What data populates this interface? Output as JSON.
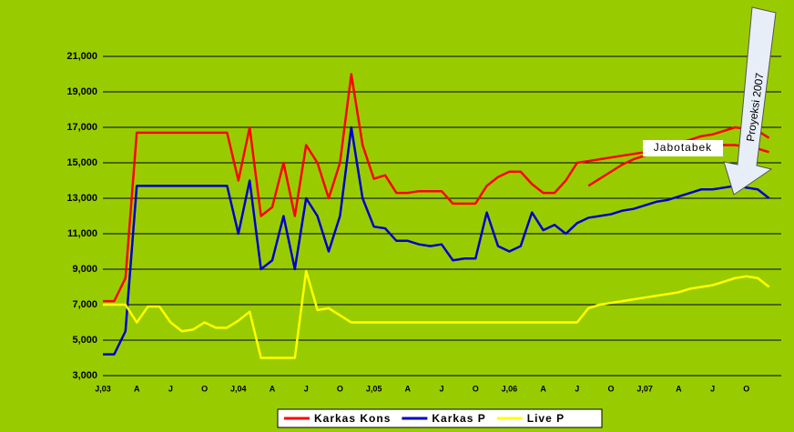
{
  "chart_data": {
    "type": "line",
    "categories": [
      "J,03",
      null,
      null,
      "A",
      null,
      null,
      "J",
      null,
      null,
      "O",
      null,
      null,
      "J,04",
      null,
      null,
      "A",
      null,
      null,
      "J",
      null,
      null,
      "O",
      null,
      null,
      "J,05",
      null,
      null,
      "A",
      null,
      null,
      "J",
      null,
      null,
      "O",
      null,
      null,
      "J,06",
      null,
      null,
      "A",
      null,
      null,
      "J",
      null,
      null,
      "O",
      null,
      null,
      "J,07",
      null,
      null,
      "A",
      null,
      null,
      "J",
      null,
      null,
      "O",
      null,
      null
    ],
    "series": [
      {
        "name": "Karkas Kons",
        "color": "#ff0000",
        "values": [
          7200,
          7200,
          8500,
          16700,
          16700,
          16700,
          16700,
          16700,
          16700,
          16700,
          16700,
          16700,
          14000,
          17000,
          12000,
          12500,
          15000,
          12000,
          16000,
          15000,
          13000,
          15000,
          20000,
          16000,
          14100,
          14300,
          13300,
          13300,
          13400,
          13400,
          13400,
          12700,
          12700,
          12700,
          13700,
          14200,
          14500,
          14500,
          13800,
          13300,
          13300,
          14000,
          15000,
          15100,
          15200,
          15300,
          15400,
          15500,
          15600,
          15700,
          15800,
          15900,
          16000,
          16000,
          16000,
          16000,
          16000,
          15900,
          15800,
          15600
        ]
      },
      {
        "color": "#ff0000",
        "values": [
          null,
          null,
          null,
          null,
          null,
          null,
          null,
          null,
          null,
          null,
          null,
          null,
          null,
          null,
          null,
          null,
          null,
          null,
          null,
          null,
          null,
          null,
          null,
          null,
          null,
          null,
          null,
          null,
          null,
          null,
          null,
          null,
          null,
          null,
          null,
          null,
          null,
          null,
          null,
          null,
          null,
          null,
          null,
          13700,
          14100,
          14500,
          14900,
          15200,
          15400,
          15700,
          15900,
          16100,
          16300,
          16500,
          16600,
          16800,
          17000,
          16900,
          16800,
          16400
        ]
      },
      {
        "name": "Karkas P",
        "color": "#0000cc",
        "values": [
          4200,
          4200,
          5500,
          13700,
          13700,
          13700,
          13700,
          13700,
          13700,
          13700,
          13700,
          13700,
          11000,
          14000,
          9000,
          9500,
          12000,
          9000,
          13000,
          12000,
          10000,
          12000,
          17000,
          13000,
          11400,
          11300,
          10600,
          10600,
          10400,
          10300,
          10400,
          9500,
          9600,
          9600,
          12200,
          10300,
          10000,
          10300,
          12200,
          11200,
          11500,
          11000,
          11600,
          11900,
          12000,
          12100,
          12300,
          12400,
          12600,
          12800,
          12900,
          13100,
          13300,
          13500,
          13500,
          13600,
          13700,
          13600,
          13500,
          13000
        ]
      },
      {
        "name": "Live P",
        "color": "#ffff00",
        "values": [
          7000,
          7000,
          7000,
          6000,
          6900,
          6900,
          6000,
          5500,
          5600,
          6000,
          5700,
          5700,
          6100,
          6600,
          4000,
          4000,
          4000,
          4000,
          8900,
          6700,
          6800,
          6400,
          6000,
          6000,
          6000,
          6000,
          6000,
          6000,
          6000,
          6000,
          6000,
          6000,
          6000,
          6000,
          6000,
          6000,
          6000,
          6000,
          6000,
          6000,
          6000,
          6000,
          6000,
          6800,
          7000,
          7100,
          7200,
          7300,
          7400,
          7500,
          7600,
          7700,
          7900,
          8000,
          8100,
          8300,
          8500,
          8600,
          8500,
          8000
        ]
      }
    ],
    "ylim": [
      3000,
      21000
    ],
    "yticks": [
      {
        "value": 3000,
        "label": "3,000"
      },
      {
        "value": 5000,
        "label": "5,000"
      },
      {
        "value": 7000,
        "label": "7,000"
      },
      {
        "value": 9000,
        "label": "9,000"
      },
      {
        "value": 11000,
        "label": "11,000"
      },
      {
        "value": 13000,
        "label": "13,000"
      },
      {
        "value": 15000,
        "label": "15,000"
      },
      {
        "value": 17000,
        "label": "17,000"
      },
      {
        "value": 19000,
        "label": "19,000"
      },
      {
        "value": 21000,
        "label": "21,000"
      }
    ],
    "grid": true,
    "annotations": [
      "Jabotabek",
      "Proyeksi  2007"
    ],
    "legend": "bottom"
  }
}
